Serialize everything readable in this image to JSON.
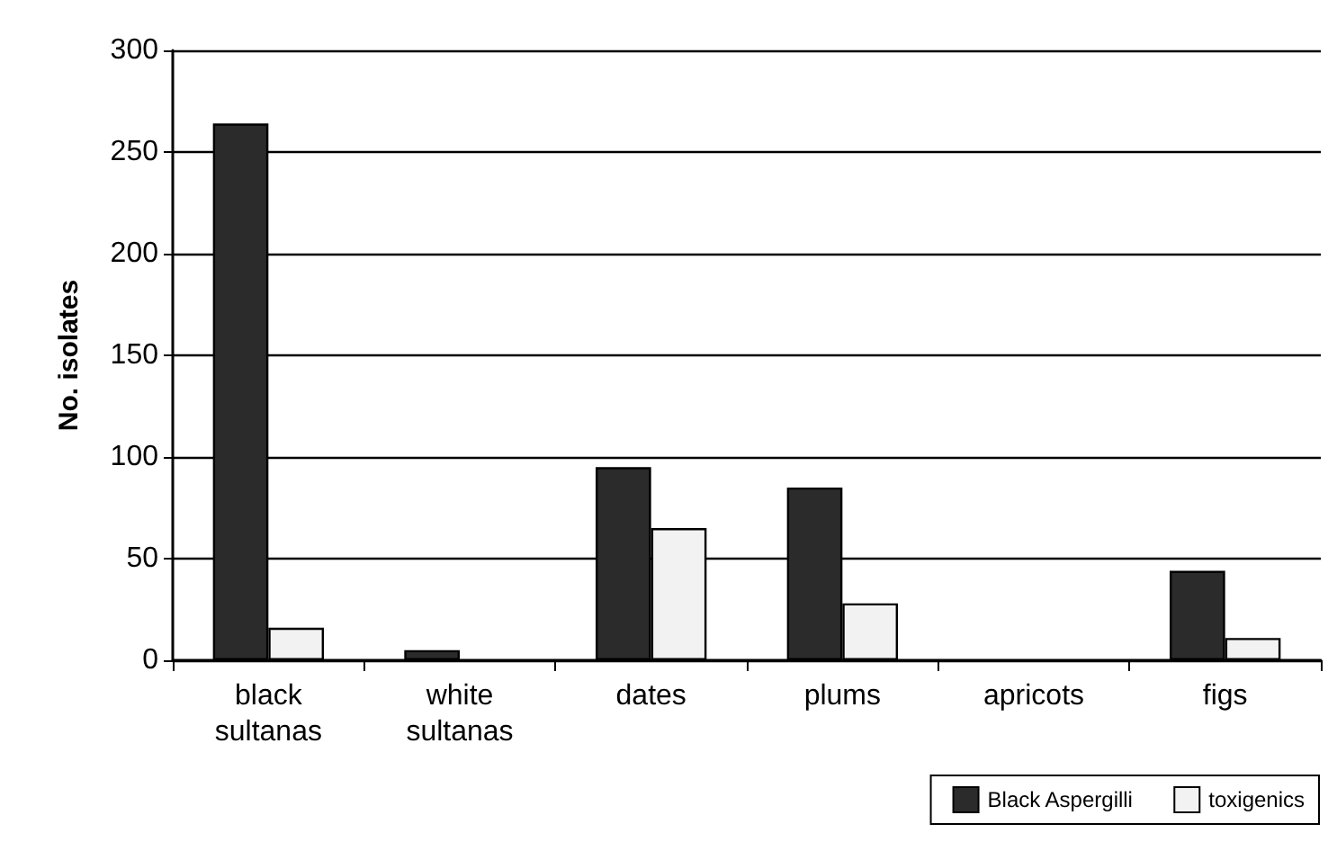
{
  "chart_data": {
    "type": "bar",
    "ylabel": "No. isolates",
    "categories": [
      "black\nsultanas",
      "white\nsultanas",
      "dates",
      "plums",
      "apricots",
      "figs"
    ],
    "series": [
      {
        "name": "Black Aspergilli",
        "color": "#2b2b2b",
        "values": [
          264,
          5,
          95,
          85,
          0,
          44
        ]
      },
      {
        "name": "toxigenics",
        "color": "#f2f2f2",
        "values": [
          16,
          0,
          65,
          28,
          0,
          11
        ]
      }
    ],
    "ylim": [
      0,
      300
    ],
    "yticks": [
      0,
      50,
      100,
      150,
      200,
      250,
      300
    ],
    "grid": "y",
    "legend": "bottom right"
  }
}
